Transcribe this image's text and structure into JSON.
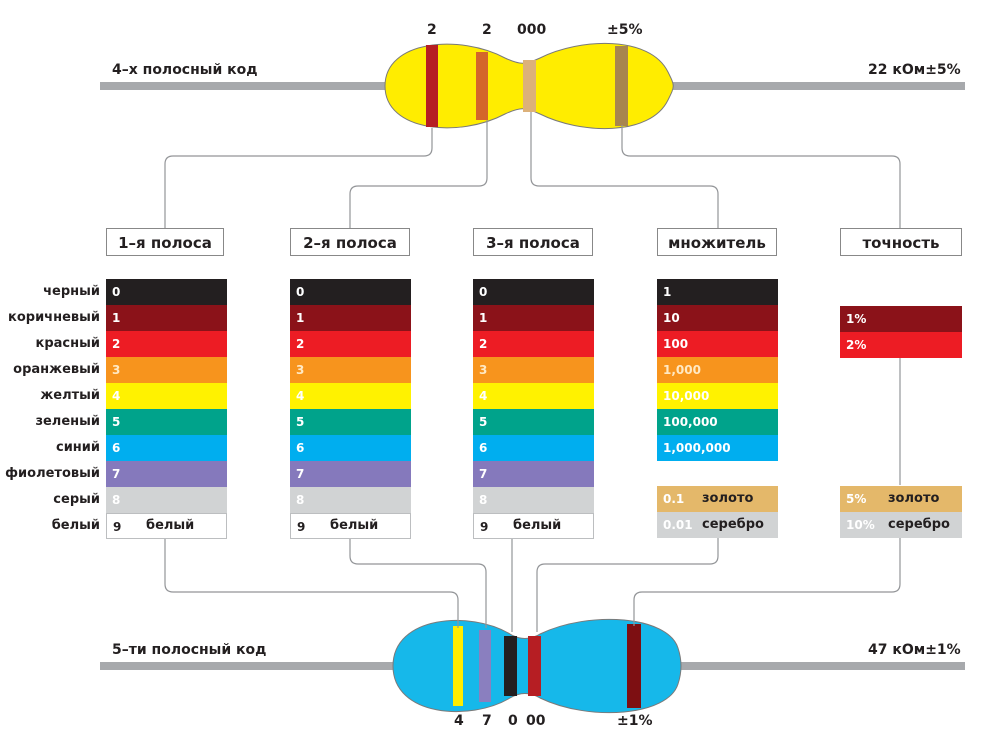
{
  "top": {
    "title": "4–х полосный код",
    "value": "22 кОм±5%",
    "band_labels": [
      "2",
      "2",
      "000",
      "±5%"
    ],
    "body_color": "#ffed00",
    "bands": [
      "#b61e23",
      "#d4662a",
      "#dcb17a",
      "#a8864e"
    ]
  },
  "bottom": {
    "title": "5–ти полосный код",
    "value": "47 кОм±1%",
    "band_labels": [
      "4",
      "7",
      "0",
      "00",
      "±1%"
    ],
    "body_color": "#16b8ea",
    "bands": [
      "#ffed00",
      "#8a7fbf",
      "#231f20",
      "#b61e23",
      "#7d0f12"
    ]
  },
  "headers": {
    "band1": "1–я полоса",
    "band2": "2–я полоса",
    "band3": "3–я полоса",
    "multiplier": "множитель",
    "tolerance": "точность"
  },
  "colors": [
    {
      "name": "черный",
      "hex": "#231f20",
      "digit": "0",
      "mult": "1",
      "text": "#ffffff"
    },
    {
      "name": "коричневый",
      "hex": "#8b1219",
      "digit": "1",
      "mult": "10",
      "text": "#ffffff"
    },
    {
      "name": "красный",
      "hex": "#ed1c24",
      "digit": "2",
      "mult": "100",
      "text": "#ffffff"
    },
    {
      "name": "оранжевый",
      "hex": "#f7941d",
      "digit": "3",
      "mult": "1,000",
      "text": "#ffe9c4"
    },
    {
      "name": "желтый",
      "hex": "#fff200",
      "digit": "4",
      "mult": "10,000",
      "text": "#ffffff"
    },
    {
      "name": "зеленый",
      "hex": "#00a38b",
      "digit": "5",
      "mult": "100,000",
      "text": "#ffffff"
    },
    {
      "name": "синий",
      "hex": "#00aeef",
      "digit": "6",
      "mult": "1,000,000",
      "text": "#ffffff"
    },
    {
      "name": "фиолетовый",
      "hex": "#8579bc",
      "digit": "7",
      "text": "#ffffff"
    },
    {
      "name": "серый",
      "hex": "#d1d3d4",
      "digit": "8",
      "text": "#ffffff"
    },
    {
      "name": "белый",
      "hex": "#ffffff",
      "digit": "9",
      "text": "#231f20",
      "label": "белый"
    }
  ],
  "multiplier_extra": [
    {
      "value": "0.1",
      "label": "золото",
      "hex": "#e4b86a"
    },
    {
      "value": "0.01",
      "label": "серебро",
      "hex": "#d1d3d4"
    }
  ],
  "tolerance": [
    {
      "value": "1%",
      "hex": "#8b1219"
    },
    {
      "value": "2%",
      "hex": "#ed1c24"
    }
  ],
  "tolerance_extra": [
    {
      "value": "5%",
      "label": "золото",
      "hex": "#e4b86a"
    },
    {
      "value": "10%",
      "label": "серебро",
      "hex": "#d1d3d4"
    }
  ]
}
